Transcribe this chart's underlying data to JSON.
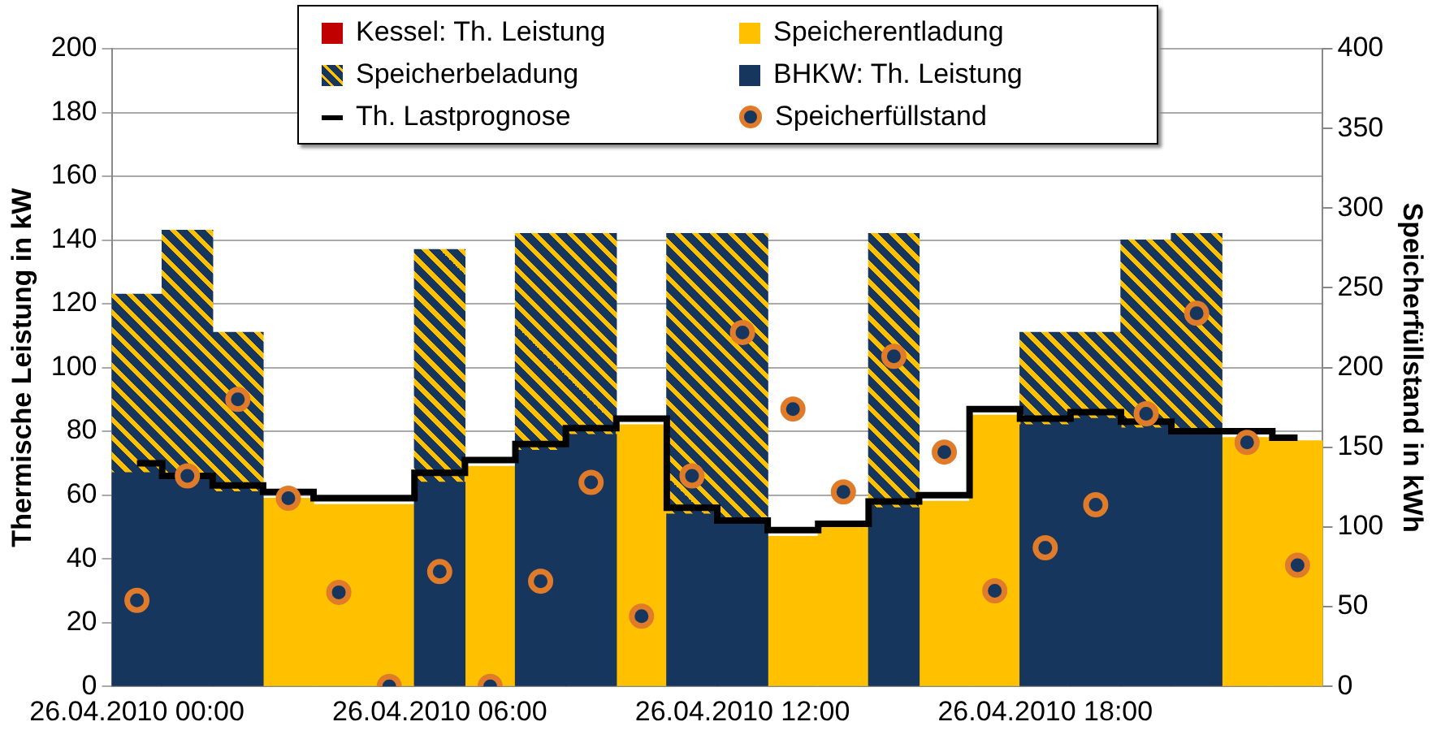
{
  "chart_data": {
    "type": "bar",
    "stacked": true,
    "ylabel": "Thermische Leistung in kW",
    "y2label": "Speicherfüllstand in kWh",
    "categories": [
      "26.04.2010 00:00",
      null,
      null,
      null,
      null,
      null,
      "26.04.2010 06:00",
      null,
      null,
      null,
      null,
      null,
      "26.04.2010 12:00",
      null,
      null,
      null,
      null,
      null,
      "26.04.2010 18:00",
      null,
      null,
      null,
      null,
      null
    ],
    "ylim": [
      0,
      200
    ],
    "yticks": [
      0,
      20,
      40,
      60,
      80,
      100,
      120,
      140,
      160,
      180,
      200
    ],
    "y2lim": [
      0,
      400
    ],
    "y2ticks": [
      0,
      50,
      100,
      150,
      200,
      250,
      300,
      350,
      400
    ],
    "grid": "y",
    "legend": "top",
    "series": [
      {
        "name": "BHKW: Th. Leistung",
        "color": "#17365d",
        "values": [
          67,
          65,
          61,
          0,
          0,
          0,
          64,
          0,
          74,
          79,
          0,
          54,
          51,
          0,
          0,
          56,
          0,
          0,
          82,
          84,
          81,
          79,
          0,
          0
        ]
      },
      {
        "name": "Speicherentladung",
        "color": "#ffc000",
        "values": [
          0,
          0,
          0,
          59,
          57,
          57,
          0,
          69,
          0,
          0,
          82,
          0,
          0,
          47,
          50,
          0,
          58,
          85,
          0,
          0,
          0,
          0,
          78,
          77
        ]
      },
      {
        "name": "Kessel: Th. Leistung",
        "color": "#c00000",
        "values": [
          0,
          0,
          0,
          0,
          0,
          0,
          0,
          0,
          0,
          0,
          0,
          0,
          0,
          0,
          0,
          0,
          0,
          0,
          0,
          0,
          0,
          0,
          0,
          0
        ]
      },
      {
        "name": "Speicherbeladung",
        "color": "#17365d",
        "values": [
          56,
          78,
          50,
          0,
          0,
          0,
          73,
          0,
          68,
          63,
          0,
          88,
          91,
          0,
          0,
          86,
          0,
          0,
          29,
          27,
          59,
          63,
          0,
          0
        ]
      },
      {
        "name": "Th. Lastprognose",
        "type": "step",
        "color": "#000000",
        "values": [
          70,
          66,
          63,
          61,
          59,
          59,
          67,
          71,
          76,
          81,
          84,
          56,
          52,
          49,
          51,
          58,
          60,
          87,
          84,
          86,
          83,
          80,
          80,
          78
        ]
      },
      {
        "name": "Speicherfüllstand",
        "type": "scatter",
        "marker": "circle",
        "axis": "y2",
        "color": "#e07b2a",
        "values": [
          54,
          132,
          180,
          118,
          59,
          0,
          72,
          0,
          66,
          128,
          44,
          132,
          222,
          174,
          122,
          207,
          147,
          60,
          87,
          114,
          171,
          234,
          153,
          76
        ]
      }
    ]
  }
}
